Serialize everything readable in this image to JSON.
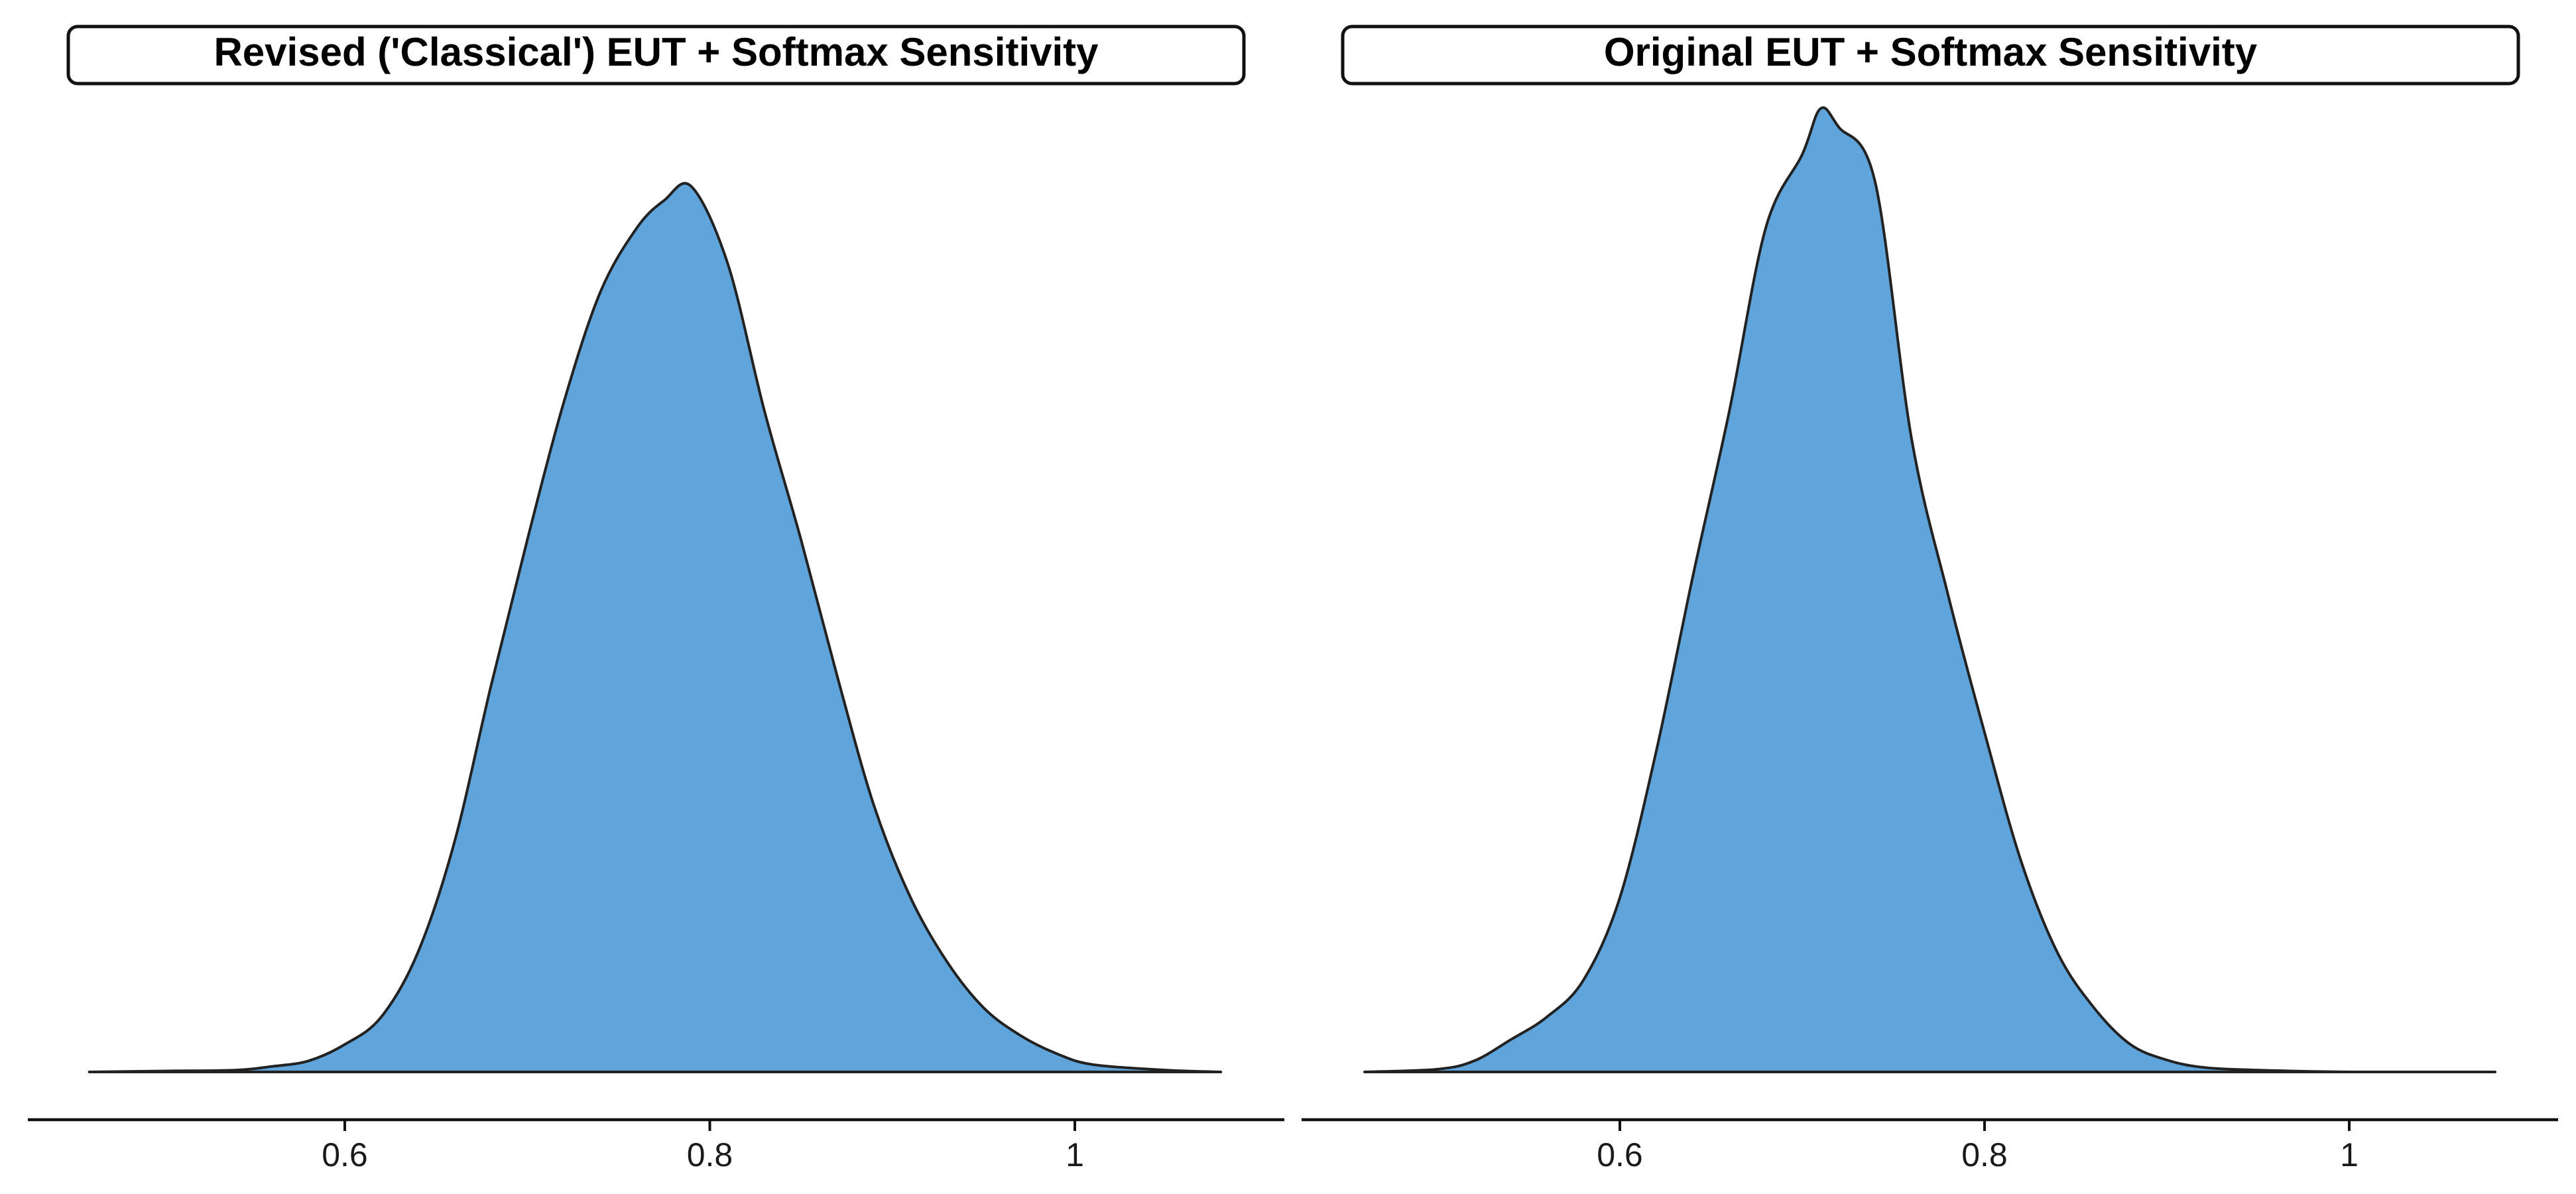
{
  "chart_data": [
    {
      "type": "area",
      "title": "Revised ('Classical') EUT + Softmax Sensitivity",
      "fill": "#5fa5db",
      "xlim": [
        0.46,
        1.08
      ],
      "xticks": [
        0.6,
        0.8,
        1
      ],
      "xtick_labels": [
        "0.6",
        "0.8",
        "1"
      ],
      "ylim": [
        0,
        1.06
      ],
      "x": [
        0.46,
        0.5,
        0.54,
        0.56,
        0.58,
        0.6,
        0.62,
        0.64,
        0.66,
        0.68,
        0.7,
        0.72,
        0.74,
        0.76,
        0.775,
        0.79,
        0.81,
        0.83,
        0.85,
        0.87,
        0.89,
        0.91,
        0.93,
        0.95,
        0.97,
        0.99,
        1.01,
        1.05,
        1.08
      ],
      "y": [
        0.0,
        0.001,
        0.002,
        0.006,
        0.012,
        0.03,
        0.06,
        0.13,
        0.25,
        0.42,
        0.58,
        0.73,
        0.85,
        0.92,
        0.95,
        0.965,
        0.88,
        0.72,
        0.58,
        0.43,
        0.29,
        0.19,
        0.12,
        0.07,
        0.04,
        0.02,
        0.008,
        0.002,
        0.0
      ]
    },
    {
      "type": "area",
      "title": "Original EUT + Softmax Sensitivity",
      "fill": "#5fa5db",
      "xlim": [
        0.46,
        1.08
      ],
      "xticks": [
        0.6,
        0.8,
        1
      ],
      "xtick_labels": [
        "0.6",
        "0.8",
        "1"
      ],
      "ylim": [
        0,
        1.06
      ],
      "x": [
        0.46,
        0.5,
        0.52,
        0.54,
        0.56,
        0.58,
        0.6,
        0.62,
        0.64,
        0.66,
        0.68,
        0.7,
        0.71,
        0.72,
        0.74,
        0.76,
        0.78,
        0.8,
        0.82,
        0.84,
        0.86,
        0.88,
        0.9,
        0.92,
        0.95,
        1.0,
        1.08
      ],
      "y": [
        0.0,
        0.003,
        0.012,
        0.035,
        0.06,
        0.1,
        0.19,
        0.35,
        0.54,
        0.72,
        0.92,
        1.0,
        1.05,
        1.03,
        0.97,
        0.69,
        0.52,
        0.37,
        0.23,
        0.13,
        0.07,
        0.03,
        0.013,
        0.005,
        0.002,
        0.0,
        0.0
      ]
    }
  ]
}
